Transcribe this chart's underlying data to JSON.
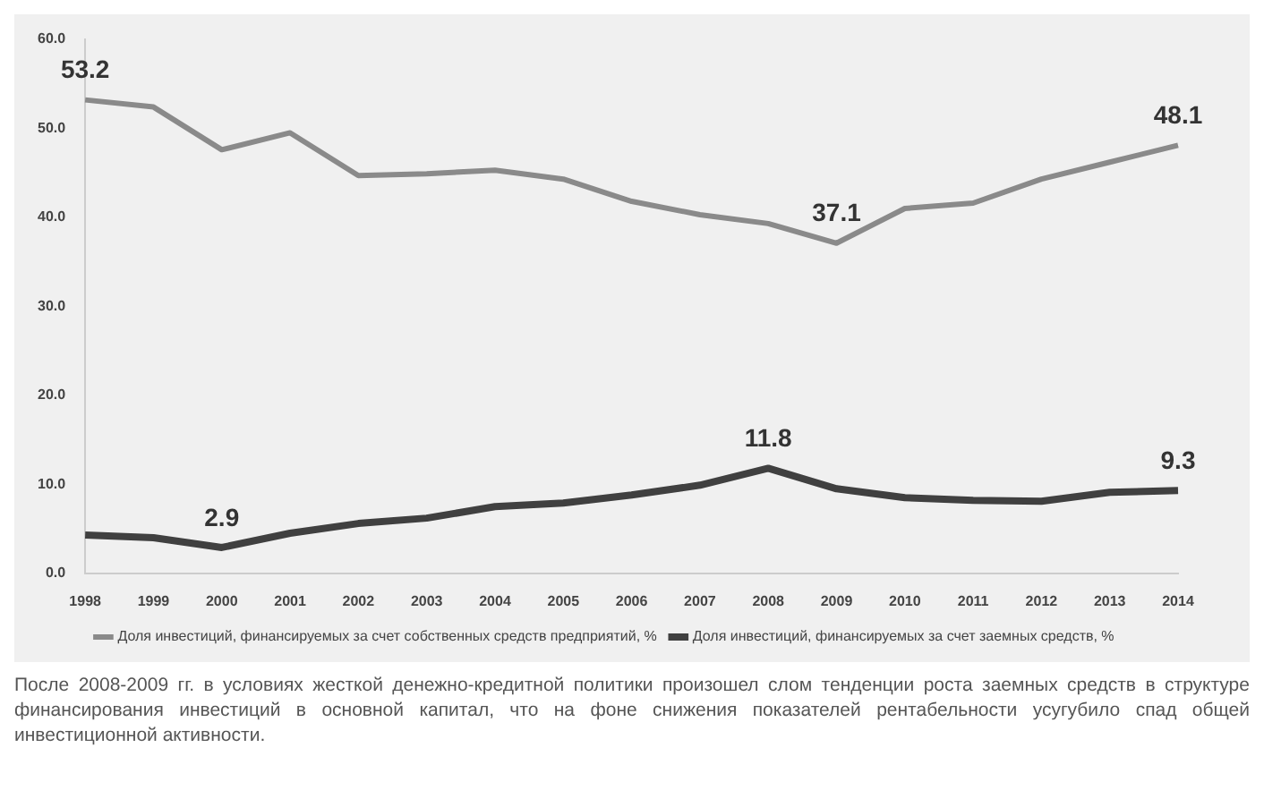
{
  "chart_data": {
    "type": "line",
    "categories": [
      "1998",
      "1999",
      "2000",
      "2001",
      "2002",
      "2003",
      "2004",
      "2005",
      "2006",
      "2007",
      "2008",
      "2009",
      "2010",
      "2011",
      "2012",
      "2013",
      "2014"
    ],
    "series": [
      {
        "name": "Доля инвестиций, финансируемых за счет собственных средств предприятий, %",
        "color": "#8a8a8a",
        "values": [
          53.2,
          52.4,
          47.6,
          49.5,
          44.7,
          44.9,
          45.3,
          44.3,
          41.8,
          40.3,
          39.3,
          37.1,
          41.0,
          41.6,
          44.3,
          46.2,
          48.1
        ],
        "value_labels": [
          "53.2",
          null,
          null,
          null,
          null,
          null,
          null,
          null,
          null,
          null,
          null,
          "37.1",
          null,
          null,
          null,
          null,
          "48.1"
        ]
      },
      {
        "name": "Доля инвестиций, финансируемых за счет заемных средств, %",
        "color": "#404040",
        "values": [
          4.3,
          4.0,
          2.9,
          4.5,
          5.6,
          6.2,
          7.5,
          7.9,
          8.8,
          9.9,
          11.8,
          9.5,
          8.5,
          8.2,
          8.1,
          9.1,
          9.3
        ],
        "value_labels": [
          null,
          null,
          "2.9",
          null,
          null,
          null,
          null,
          null,
          null,
          null,
          "11.8",
          null,
          null,
          null,
          null,
          null,
          "9.3"
        ]
      }
    ],
    "ylim": [
      0,
      60
    ],
    "yticks": [
      {
        "value": 0,
        "label": "0.0"
      },
      {
        "value": 10,
        "label": "10.0"
      },
      {
        "value": 20,
        "label": "20.0"
      },
      {
        "value": 30,
        "label": "30.0"
      },
      {
        "value": 40,
        "label": "40.0"
      },
      {
        "value": 50,
        "label": "50.0"
      },
      {
        "value": 60,
        "label": "60.0"
      }
    ],
    "grid": false,
    "legend": "bottom",
    "marker": "none",
    "annotations": [
      "После 2008-2009 гг. в условиях жесткой денежно-кредитной политики произошел слом тенденции роста заемных средств в структуре финансирования инвестиций в основной капитал, что на фоне снижения показателей рентабельности усугубило спад общей инвестиционной активности."
    ]
  }
}
